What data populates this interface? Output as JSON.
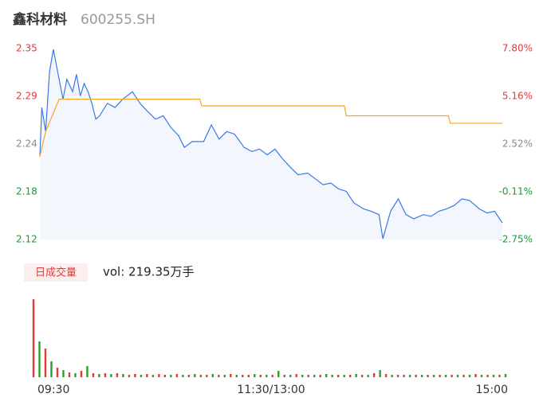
{
  "header": {
    "name": "鑫科材料",
    "code": "600255.SH"
  },
  "chart_data": [
    {
      "type": "line",
      "xlim": [
        0,
        240
      ],
      "xticks": [
        {
          "value": 0,
          "label": "09:30"
        },
        {
          "value": 120,
          "label": "11:30/13:00"
        },
        {
          "value": 240,
          "label": "15:00"
        }
      ],
      "ylim": [
        2.12,
        2.35
      ],
      "yticks": [
        {
          "value": 2.35,
          "label": "2.35"
        },
        {
          "value": 2.2925,
          "label": "2.29"
        },
        {
          "value": 2.235,
          "label": "2.24"
        },
        {
          "value": 2.1775,
          "label": "2.18"
        },
        {
          "value": 2.12,
          "label": "2.12"
        }
      ],
      "y2lim": [
        -2.75,
        7.8
      ],
      "y2ticks": [
        {
          "value": 7.8,
          "label": "7.80%"
        },
        {
          "value": 5.16,
          "label": "5.16%"
        },
        {
          "value": 2.52,
          "label": "2.52%"
        },
        {
          "value": -0.11,
          "label": "-0.11%"
        },
        {
          "value": -2.75,
          "label": "-2.75%"
        }
      ],
      "grid": false,
      "series": [
        {
          "color": "#3b78e7",
          "x": [
            0,
            1,
            3,
            5,
            7,
            8,
            10,
            12,
            14,
            17,
            19,
            21,
            23,
            25,
            27,
            29,
            31,
            35,
            39,
            43,
            48,
            52,
            56,
            60,
            64,
            68,
            72,
            75,
            79,
            85,
            89,
            93,
            97,
            101,
            106,
            110,
            114,
            118,
            122,
            126,
            130,
            134,
            139,
            143,
            147,
            151,
            155,
            159,
            163,
            168,
            172,
            176,
            178,
            182,
            186,
            190,
            194,
            199,
            203,
            207,
            211,
            215,
            219,
            223,
            228,
            232,
            236,
            240
          ],
          "values": [
            2.22,
            2.279,
            2.25,
            2.322,
            2.349,
            2.337,
            2.313,
            2.289,
            2.313,
            2.298,
            2.319,
            2.293,
            2.308,
            2.298,
            2.284,
            2.265,
            2.269,
            2.284,
            2.279,
            2.289,
            2.298,
            2.284,
            2.274,
            2.265,
            2.269,
            2.255,
            2.245,
            2.231,
            2.238,
            2.238,
            2.258,
            2.241,
            2.25,
            2.247,
            2.231,
            2.226,
            2.229,
            2.222,
            2.229,
            2.217,
            2.207,
            2.198,
            2.2,
            2.193,
            2.186,
            2.188,
            2.181,
            2.178,
            2.164,
            2.157,
            2.154,
            2.15,
            2.121,
            2.154,
            2.169,
            2.15,
            2.145,
            2.15,
            2.148,
            2.154,
            2.157,
            2.161,
            2.169,
            2.167,
            2.157,
            2.152,
            2.154,
            2.14
          ]
        },
        {
          "color": "#f5a623",
          "x": [
            0,
            3,
            10,
            83,
            84,
            158,
            159,
            212,
            213,
            240
          ],
          "values": [
            2.22,
            2.25,
            2.289,
            2.289,
            2.281,
            2.281,
            2.269,
            2.269,
            2.26,
            2.26
          ]
        }
      ]
    },
    {
      "type": "bar",
      "title": "日成交量",
      "subtitle": "vol: 219.35万手",
      "ylim": [
        0,
        10
      ],
      "up_color": "#e4393c",
      "down_color": "#2ca02c",
      "values": [
        9.8,
        4.5,
        3.6,
        2.0,
        1.2,
        0.9,
        0.6,
        0.5,
        0.8,
        1.4,
        0.5,
        0.4,
        0.5,
        0.4,
        0.5,
        0.4,
        0.3,
        0.4,
        0.3,
        0.4,
        0.3,
        0.4,
        0.3,
        0.3,
        0.4,
        0.3,
        0.3,
        0.4,
        0.3,
        0.3,
        0.4,
        0.3,
        0.3,
        0.4,
        0.3,
        0.3,
        0.3,
        0.4,
        0.3,
        0.3,
        0.3,
        0.8,
        0.3,
        0.3,
        0.4,
        0.3,
        0.3,
        0.3,
        0.3,
        0.4,
        0.3,
        0.3,
        0.3,
        0.3,
        0.4,
        0.3,
        0.3,
        0.5,
        0.9,
        0.4,
        0.3,
        0.3,
        0.3,
        0.3,
        0.3,
        0.3,
        0.3,
        0.3,
        0.3,
        0.3,
        0.3,
        0.3,
        0.3,
        0.3,
        0.4,
        0.3,
        0.3,
        0.3,
        0.3,
        0.4
      ],
      "up": [
        1,
        0,
        1,
        0,
        1,
        0,
        1,
        0,
        1,
        0,
        1,
        0,
        1,
        0,
        1,
        0,
        1,
        1,
        0,
        1,
        0,
        1,
        1,
        0,
        1,
        0,
        1,
        0,
        1,
        1,
        0,
        1,
        0,
        1,
        0,
        1,
        1,
        0,
        1,
        0,
        1,
        0,
        1,
        0,
        1,
        0,
        1,
        0,
        1,
        0,
        0,
        1,
        0,
        1,
        0,
        1,
        0,
        1,
        0,
        1,
        0,
        1,
        1,
        0,
        1,
        0,
        1,
        0,
        1,
        0,
        1,
        0,
        1,
        0,
        1,
        0,
        1,
        0,
        1,
        0
      ]
    }
  ]
}
